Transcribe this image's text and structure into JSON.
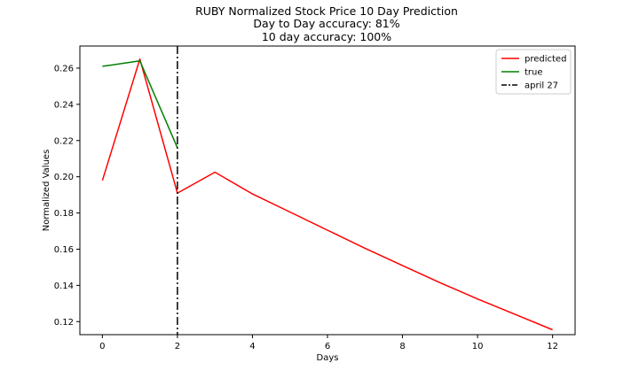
{
  "chart_data": {
    "type": "line",
    "title_lines": [
      "RUBY Normalized Stock Price 10 Day Prediction",
      "Day to Day accuracy: 81%",
      "10 day accuracy: 100%"
    ],
    "xlabel": "Days",
    "ylabel": "Normalized Values",
    "xlim": [
      -0.6,
      12.6
    ],
    "ylim": [
      0.1128,
      0.2722
    ],
    "xticks": [
      0,
      2,
      4,
      6,
      8,
      10,
      12
    ],
    "yticks": [
      0.12,
      0.14,
      0.16,
      0.18,
      0.2,
      0.22,
      0.24,
      0.26
    ],
    "xtick_labels": [
      "0",
      "2",
      "4",
      "6",
      "8",
      "10",
      "12"
    ],
    "ytick_labels": [
      "0.12",
      "0.14",
      "0.16",
      "0.18",
      "0.20",
      "0.22",
      "0.24",
      "0.26"
    ],
    "grid": false,
    "legend_position": "top-right",
    "series": [
      {
        "name": "predicted",
        "color": "#ff0000",
        "style": "solid",
        "x": [
          0,
          1,
          2,
          3,
          4,
          5,
          6,
          7,
          8,
          9,
          10,
          11,
          12
        ],
        "y": [
          0.198,
          0.265,
          0.191,
          0.2025,
          0.1905,
          0.1805,
          0.1705,
          0.1605,
          0.151,
          0.1415,
          0.1325,
          0.124,
          0.1155
        ]
      },
      {
        "name": "true",
        "color": "#008000",
        "style": "solid",
        "x": [
          0,
          1,
          2
        ],
        "y": [
          0.261,
          0.264,
          0.216
        ]
      }
    ],
    "vlines": [
      {
        "name": "april 27",
        "x": 2,
        "color": "#000000",
        "style": "dashdot"
      }
    ]
  }
}
